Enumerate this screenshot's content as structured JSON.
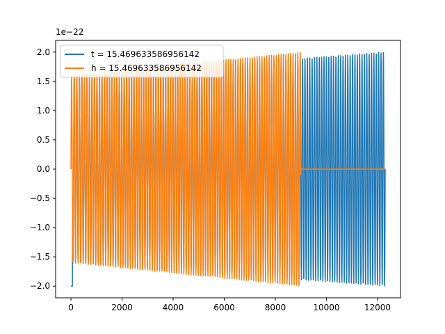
{
  "chart_data": {
    "type": "line",
    "title": "",
    "xlabel": "",
    "ylabel": "",
    "xlim": [
      -600,
      12900
    ],
    "ylim": [
      -2.2e-22,
      2.2e-22
    ],
    "y_offset_label": "1e−22",
    "x_ticks": [
      0,
      2000,
      4000,
      6000,
      8000,
      10000,
      12000
    ],
    "x_tick_labels": [
      "0",
      "2000",
      "4000",
      "6000",
      "8000",
      "10000",
      "12000"
    ],
    "y_ticks": [
      -2.0,
      -1.5,
      -1.0,
      -0.5,
      0.0,
      0.5,
      1.0,
      1.5,
      2.0
    ],
    "y_tick_labels": [
      "−2.0",
      "−1.5",
      "−1.0",
      "−0.5",
      "0.0",
      "0.5",
      "1.0",
      "1.5",
      "2.0"
    ],
    "grid": false,
    "legend_position": "top-left",
    "series": [
      {
        "name": "t = 15.469633586956142",
        "color": "#1f77b4",
        "description": "oscillating chirp, envelope ~1.6e-22 at x=0 rising to ~2.0e-22 at x~12300",
        "x_range": [
          0,
          12300
        ],
        "envelope_start": 1.6e-22,
        "envelope_end": 2e-22,
        "initial_dip": -2e-22
      },
      {
        "name": "h = 15.469633586956142",
        "color": "#ff7f0e",
        "description": "oscillating chirp, envelope ~1.6e-22 rising to ~2.0e-22 at x~9000, then flat at 0 to x~12300",
        "x_range": [
          0,
          12300
        ],
        "active_end": 9000,
        "envelope_start": 1.6e-22,
        "envelope_end": 2e-22
      }
    ]
  }
}
